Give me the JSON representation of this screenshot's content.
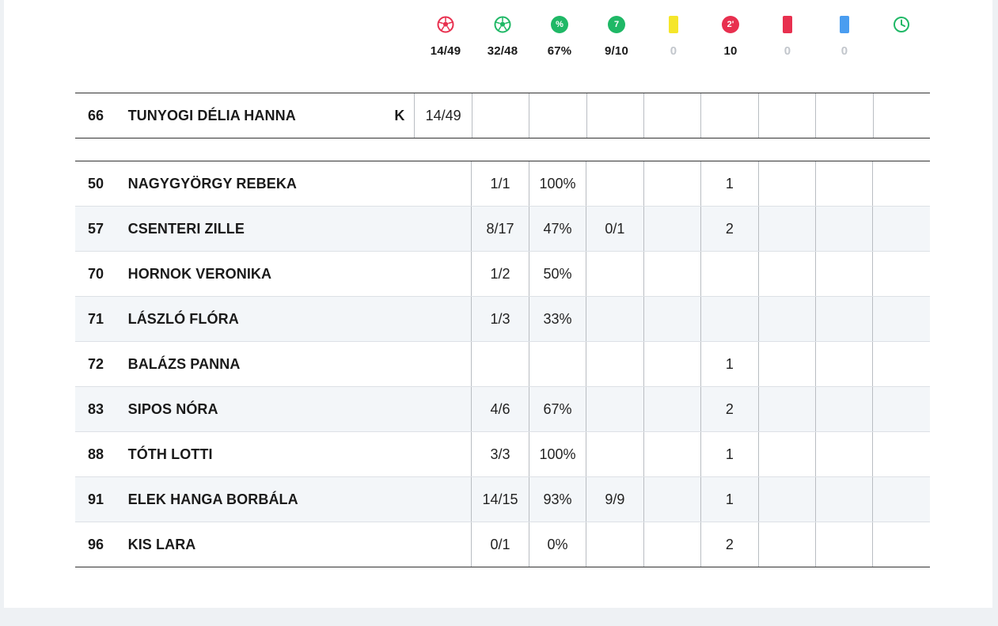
{
  "summary": [
    {
      "icon": "ball-red-icon",
      "value": "14/49",
      "muted": false
    },
    {
      "icon": "ball-green-icon",
      "value": "32/48",
      "muted": false
    },
    {
      "icon": "percent-icon",
      "value": "67%",
      "muted": false
    },
    {
      "icon": "seven-meter-icon",
      "value": "9/10",
      "muted": false
    },
    {
      "icon": "yellow-card-icon",
      "value": "0",
      "muted": true
    },
    {
      "icon": "two-minute-icon",
      "value": "10",
      "muted": false
    },
    {
      "icon": "red-card-icon",
      "value": "0",
      "muted": true
    },
    {
      "icon": "blue-card-icon",
      "value": "0",
      "muted": true
    },
    {
      "icon": "clock-icon",
      "value": "",
      "muted": false
    }
  ],
  "icons": {
    "percent": "%",
    "seven": "7",
    "two_min": "2'"
  },
  "colors": {
    "red": "#e8304f",
    "green": "#1fb866",
    "yellow": "#f5e62a",
    "blue": "#4a9df0"
  },
  "goalkeeper": {
    "number": "66",
    "name": "TUNYOGI DÉLIA HANNA",
    "tag": "K",
    "saves": "14/49"
  },
  "players": [
    {
      "number": "50",
      "name": "NAGYGYÖRGY REBEKA",
      "stats": [
        "1/1",
        "100%",
        "",
        "",
        "1",
        "",
        "",
        ""
      ]
    },
    {
      "number": "57",
      "name": "CSENTERI ZILLE",
      "stats": [
        "8/17",
        "47%",
        "0/1",
        "",
        "2",
        "",
        "",
        ""
      ]
    },
    {
      "number": "70",
      "name": "HORNOK VERONIKA",
      "stats": [
        "1/2",
        "50%",
        "",
        "",
        "",
        "",
        "",
        ""
      ]
    },
    {
      "number": "71",
      "name": "LÁSZLÓ FLÓRA",
      "stats": [
        "1/3",
        "33%",
        "",
        "",
        "",
        "",
        "",
        ""
      ]
    },
    {
      "number": "72",
      "name": "BALÁZS PANNA",
      "stats": [
        "",
        "",
        "",
        "",
        "1",
        "",
        "",
        ""
      ]
    },
    {
      "number": "83",
      "name": "SIPOS NÓRA",
      "stats": [
        "4/6",
        "67%",
        "",
        "",
        "2",
        "",
        "",
        ""
      ]
    },
    {
      "number": "88",
      "name": "TÓTH LOTTI",
      "stats": [
        "3/3",
        "100%",
        "",
        "",
        "1",
        "",
        "",
        ""
      ]
    },
    {
      "number": "91",
      "name": "ELEK HANGA BORBÁLA",
      "stats": [
        "14/15",
        "93%",
        "9/9",
        "",
        "1",
        "",
        "",
        ""
      ]
    },
    {
      "number": "96",
      "name": "KIS LARA",
      "stats": [
        "0/1",
        "0%",
        "",
        "",
        "2",
        "",
        "",
        ""
      ]
    }
  ]
}
